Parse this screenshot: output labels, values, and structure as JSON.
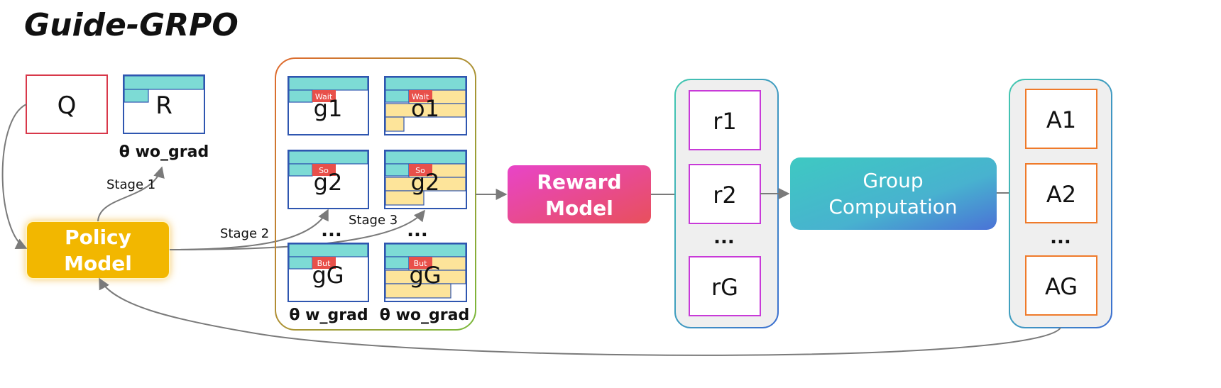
{
  "title": "Guide-GRPO",
  "inputs": {
    "q": "Q",
    "r": "R",
    "r_caption": "θ  wo_grad"
  },
  "policy": {
    "line1": "Policy",
    "line2": "Model"
  },
  "stages": {
    "s1": "Stage 1",
    "s2": "Stage 2",
    "s3": "Stage 3"
  },
  "responses": {
    "left_labels": [
      "g1",
      "g2",
      "gG"
    ],
    "right_labels": [
      "o1",
      "g2",
      "gG"
    ],
    "tags": [
      "Wait",
      "So",
      "But"
    ],
    "ellipsis": "...",
    "left_caption": "θ  w_grad",
    "right_caption": "θ  wo_grad"
  },
  "reward": {
    "line1": "Reward",
    "line2": "Model"
  },
  "rewards": {
    "items": [
      "r1",
      "r2",
      "rG"
    ],
    "ellipsis": "..."
  },
  "group": {
    "line1": "Group",
    "line2": "Computation"
  },
  "advantages": {
    "items": [
      "A1",
      "A2",
      "AG"
    ],
    "ellipsis": "..."
  },
  "colors": {
    "teal_bar": "#7ddbd5",
    "yellow_fill": "#fde49a",
    "tag_red": "#e8504a",
    "box_blue": "#2f56b0",
    "q_red": "#d8384a",
    "policy_gold": "#f2b705",
    "reward_pink": "#e040b8",
    "group_teal": "#3fc4c4",
    "reward_box_magenta": "#c83ad8",
    "adv_orange": "#ef7a2a"
  }
}
